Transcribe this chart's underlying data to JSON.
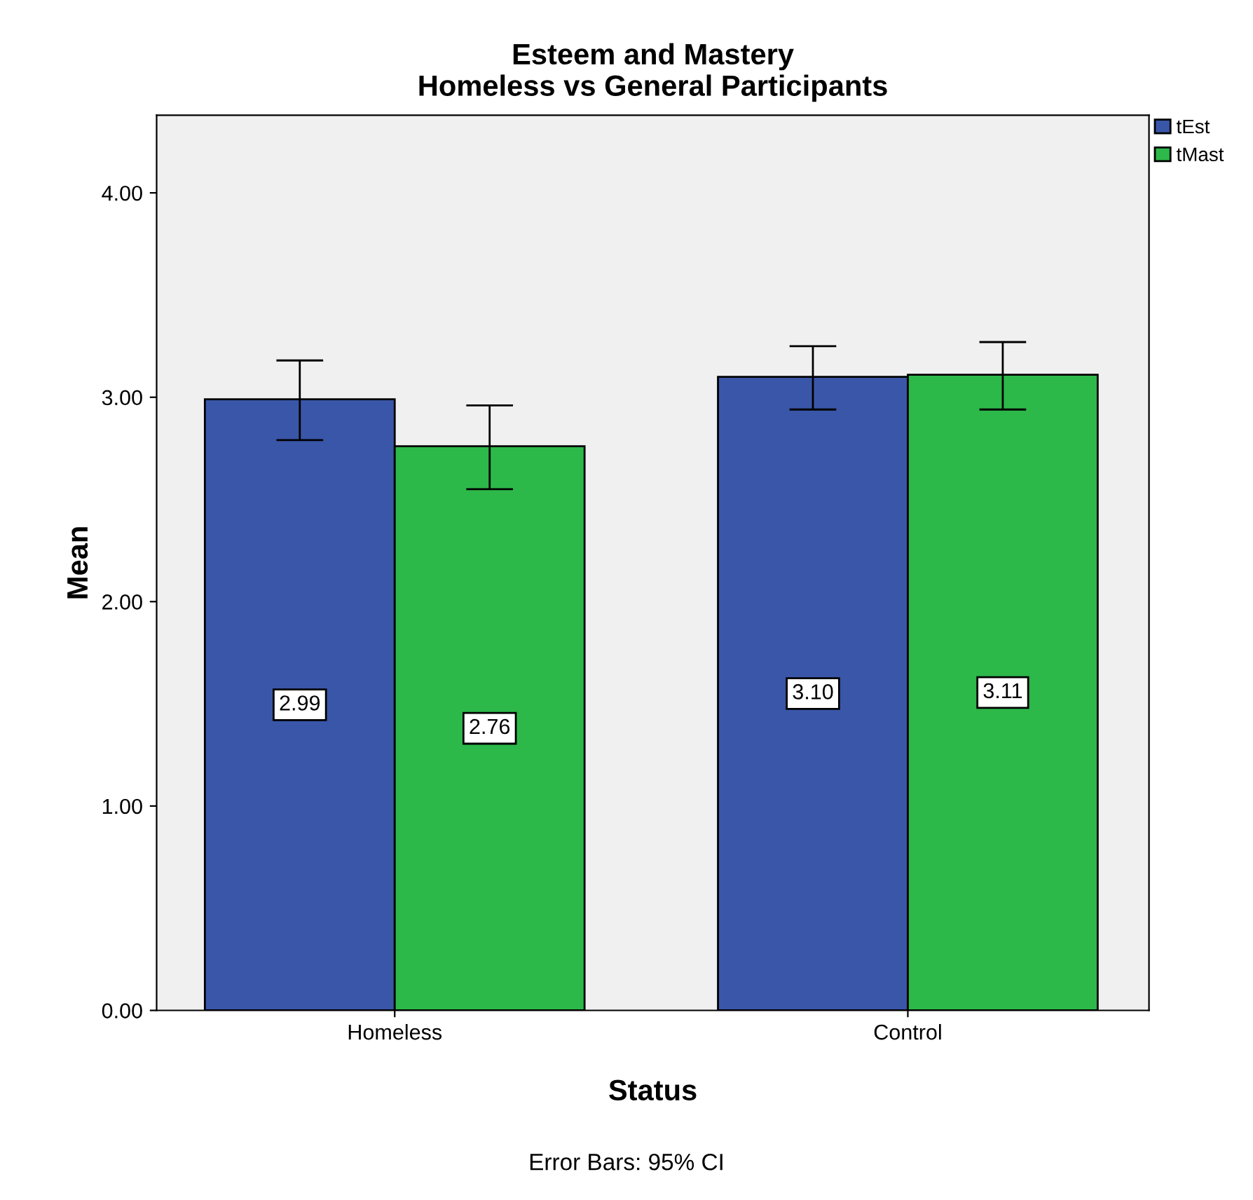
{
  "chart_data": {
    "type": "bar",
    "title": "Esteem and Mastery\nHomeless vs General Participants",
    "xlabel": "Status",
    "ylabel": "Mean",
    "categories": [
      "Homeless",
      "Control"
    ],
    "series": [
      {
        "name": "tEst",
        "color": "#3a56a8",
        "values": [
          2.99,
          3.1
        ],
        "value_labels": [
          "2.99",
          "3.10"
        ],
        "errors": [
          [
            2.79,
            3.18
          ],
          [
            2.94,
            3.25
          ]
        ]
      },
      {
        "name": "tMast",
        "color": "#2db84a",
        "values": [
          2.76,
          3.11
        ],
        "value_labels": [
          "2.76",
          "3.11"
        ],
        "errors": [
          [
            2.55,
            2.96
          ],
          [
            2.94,
            3.27
          ]
        ]
      }
    ],
    "ylim": [
      0,
      4.38
    ],
    "yticks": [
      {
        "value": 0,
        "label": "0.00"
      },
      {
        "value": 1,
        "label": "1.00"
      },
      {
        "value": 2,
        "label": "2.00"
      },
      {
        "value": 3,
        "label": "3.00"
      },
      {
        "value": 4,
        "label": "4.00"
      }
    ],
    "grid": false,
    "legend": "top right",
    "annotations": [
      "Error Bars: 95% CI"
    ]
  }
}
